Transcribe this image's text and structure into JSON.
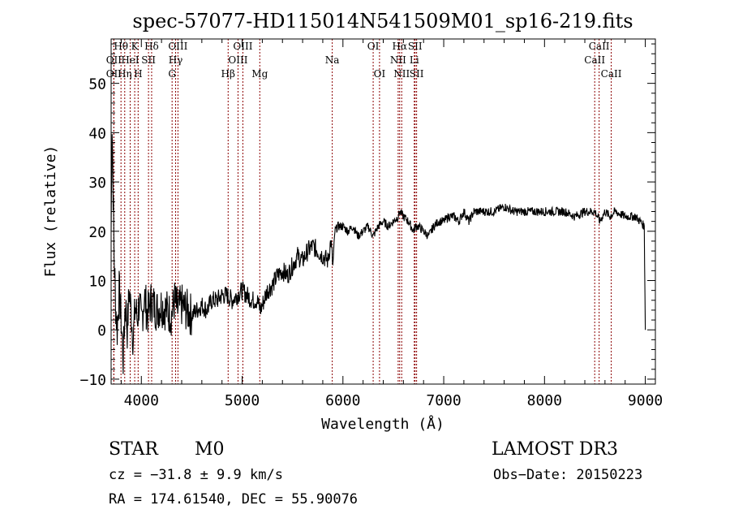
{
  "chart_data": {
    "type": "line",
    "title": "spec-57077-HD115014N541509M01_sp16-219.fits",
    "xlabel": "Wavelength (Å)",
    "ylabel": "Flux (relative)",
    "xlim": [
      3700,
      9100
    ],
    "ylim": [
      -11,
      59
    ],
    "grid": false,
    "x_ticks": [
      4000,
      5000,
      6000,
      7000,
      8000,
      9000
    ],
    "y_ticks": [
      -10,
      0,
      10,
      20,
      30,
      40,
      50
    ],
    "series": [
      {
        "x": [
          3700,
          3710,
          3720,
          3730,
          3745,
          3760,
          3780,
          3800,
          3820,
          3840,
          3860,
          3880,
          3900,
          3920,
          3940,
          3960,
          3980,
          4000,
          4030,
          4060,
          4100,
          4150,
          4200,
          4250,
          4300,
          4330,
          4360,
          4400,
          4450,
          4500,
          4550,
          4600,
          4650,
          4700,
          4750,
          4800,
          4850,
          4900,
          4950,
          5000,
          5050,
          5100,
          5150,
          5180,
          5200,
          5250,
          5300,
          5350,
          5400,
          5450,
          5500,
          5550,
          5600,
          5650,
          5700,
          5750,
          5800,
          5850,
          5880,
          5900,
          5920,
          5950,
          6000,
          6050,
          6100,
          6150,
          6200,
          6250,
          6300,
          6350,
          6400,
          6450,
          6500,
          6550,
          6563,
          6600,
          6650,
          6700,
          6720,
          6750,
          6800,
          6850,
          6900,
          6950,
          7000,
          7050,
          7100,
          7150,
          7200,
          7250,
          7300,
          7400,
          7500,
          7600,
          7700,
          7800,
          7900,
          8000,
          8100,
          8200,
          8300,
          8400,
          8500,
          8550,
          8600,
          8650,
          8700,
          8800,
          8900,
          8950,
          8990,
          9000
        ],
        "y": [
          20,
          42,
          28,
          15,
          5,
          0,
          8,
          2,
          -6,
          6,
          0,
          8,
          3,
          -2,
          5,
          2,
          6,
          1,
          7,
          3,
          6,
          4,
          5,
          4,
          3,
          6,
          4,
          5,
          4,
          3,
          4,
          5,
          4,
          6,
          6,
          7,
          7,
          6,
          7,
          8,
          7,
          6,
          6,
          4,
          5,
          8,
          9,
          11,
          12,
          11,
          13,
          15,
          14,
          16,
          17,
          16,
          15,
          14,
          18,
          13,
          20,
          21,
          21,
          20,
          21,
          19,
          20,
          21,
          19,
          21,
          22,
          21,
          22,
          23,
          24,
          23,
          22,
          20,
          21,
          21,
          20,
          19,
          21,
          22,
          22,
          23,
          23,
          22,
          24,
          22,
          24,
          24,
          24,
          25,
          24,
          24,
          24,
          24,
          24,
          24,
          23,
          24,
          24,
          22,
          24,
          23,
          24,
          23,
          23,
          22,
          21,
          0
        ]
      }
    ],
    "lines": [
      {
        "label": "OII",
        "x": 3727,
        "row": 2
      },
      {
        "label": "OII",
        "x": 3727,
        "row": 3
      },
      {
        "label": "Hθ",
        "x": 3798,
        "row": 1
      },
      {
        "label": "Hη",
        "x": 3835,
        "row": 3
      },
      {
        "label": "HeI",
        "x": 3889,
        "row": 2
      },
      {
        "label": "K",
        "x": 3934,
        "row": 1
      },
      {
        "label": "H",
        "x": 3968,
        "row": 3
      },
      {
        "label": "SII",
        "x": 4071,
        "row": 2
      },
      {
        "label": "Hδ",
        "x": 4102,
        "row": 1
      },
      {
        "label": "OIII",
        "x": 4363,
        "row": 1
      },
      {
        "label": "Hγ",
        "x": 4340,
        "row": 2
      },
      {
        "label": "G",
        "x": 4305,
        "row": 3
      },
      {
        "label": "Hβ",
        "x": 4861,
        "row": 3
      },
      {
        "label": "OIII",
        "x": 5007,
        "row": 1
      },
      {
        "label": "OIII",
        "x": 4959,
        "row": 2
      },
      {
        "label": "Mg",
        "x": 5175,
        "row": 3
      },
      {
        "label": "Na",
        "x": 5894,
        "row": 2
      },
      {
        "label": "OI",
        "x": 6300,
        "row": 1
      },
      {
        "label": "OI",
        "x": 6363,
        "row": 3
      },
      {
        "label": "Hα",
        "x": 6563,
        "row": 1
      },
      {
        "label": "NII",
        "x": 6548,
        "row": 2
      },
      {
        "label": "NII",
        "x": 6583,
        "row": 3
      },
      {
        "label": "SII",
        "x": 6716,
        "row": 1
      },
      {
        "label": "Li",
        "x": 6708,
        "row": 2
      },
      {
        "label": "SII",
        "x": 6731,
        "row": 3
      },
      {
        "label": "CaII",
        "x": 8542,
        "row": 1
      },
      {
        "label": "CaII",
        "x": 8498,
        "row": 2
      },
      {
        "label": "CaII",
        "x": 8662,
        "row": 3
      }
    ]
  },
  "info": {
    "class": "STAR",
    "subclass": "M0",
    "survey": "LAMOST DR3",
    "cz": "cz = −31.8 ± 9.9 km/s",
    "obs_date": "Obs−Date: 20150223",
    "coords": "RA = 174.61540, DEC =  55.90076"
  }
}
